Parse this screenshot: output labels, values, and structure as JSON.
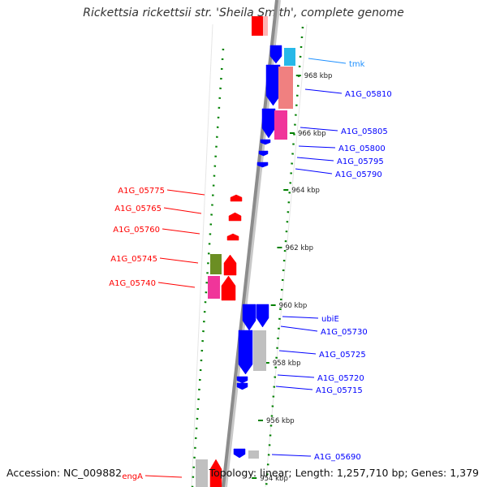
{
  "title": "Rickettsia rickettsii str. 'Sheila Smith', complete genome",
  "accession_text": "Accession: NC_009882",
  "topology_text": "Topology: linear; Length: 1,257,710 bp; Genes: 1,379",
  "ticks": [
    {
      "label": "968 kbp",
      "pos": 968
    },
    {
      "label": "966 kbp",
      "pos": 966
    },
    {
      "label": "964 kbp",
      "pos": 964
    },
    {
      "label": "962 kbp",
      "pos": 962
    },
    {
      "label": "960 kbp",
      "pos": 960
    },
    {
      "label": "958 kbp",
      "pos": 958
    },
    {
      "label": "956 kbp",
      "pos": 956
    },
    {
      "label": "954 kbp",
      "pos": 954
    }
  ],
  "genes_forward": [
    {
      "label": "tmk",
      "color": "#1e90ff"
    },
    {
      "label": "A1G_05810",
      "color": "#0000ff"
    },
    {
      "label": "A1G_05805",
      "color": "#0000ff"
    },
    {
      "label": "A1G_05800",
      "color": "#0000ff"
    },
    {
      "label": "A1G_05795",
      "color": "#0000ff"
    },
    {
      "label": "A1G_05790",
      "color": "#0000ff"
    },
    {
      "label": "ubiE",
      "color": "#0000ff"
    },
    {
      "label": "A1G_05730",
      "color": "#0000ff"
    },
    {
      "label": "A1G_05725",
      "color": "#0000ff"
    },
    {
      "label": "A1G_05720",
      "color": "#0000ff"
    },
    {
      "label": "A1G_05715",
      "color": "#0000ff"
    },
    {
      "label": "A1G_05690",
      "color": "#0000ff"
    }
  ],
  "genes_reverse": [
    {
      "label": "A1G_05775",
      "color": "#ff0000"
    },
    {
      "label": "A1G_05765",
      "color": "#ff0000"
    },
    {
      "label": "A1G_05760",
      "color": "#ff0000"
    },
    {
      "label": "A1G_05745",
      "color": "#ff0000"
    },
    {
      "label": "A1G_05740",
      "color": "#ff0000"
    },
    {
      "label": "engA",
      "color": "#ff0000"
    }
  ],
  "colors": {
    "forward_strand": "#0000ff",
    "reverse_strand": "#ff0000",
    "backbone": "#8c8c8c",
    "tick": "#008000",
    "cog_cyan": "#27b8e8",
    "cog_salmon": "#f08080",
    "cog_pink": "#f0359a",
    "cog_olive": "#6b8e23",
    "cog_grey": "#c0c0c0"
  }
}
